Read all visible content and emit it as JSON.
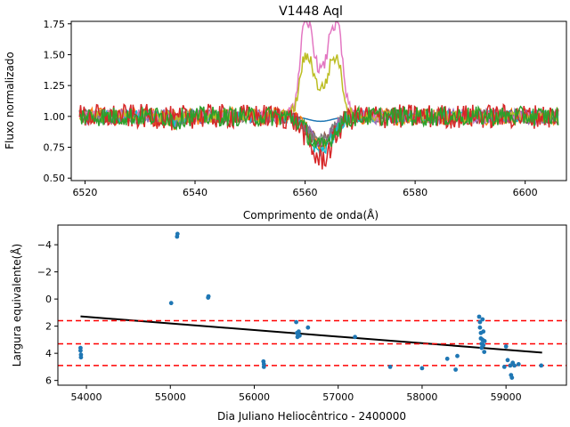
{
  "chart_data": [
    {
      "type": "line",
      "title": "V1448 Aql",
      "xlabel": "Comprimento de onda(Å)",
      "ylabel": "Fluxo normalizado",
      "xlim": [
        6517.5,
        6607.5
      ],
      "ylim": [
        0.48,
        1.77
      ],
      "xticks": [
        6520,
        6540,
        6560,
        6580,
        6600
      ],
      "xtick_labels": [
        "6520",
        "6540",
        "6560",
        "6580",
        "6600"
      ],
      "yticks": [
        0.5,
        0.75,
        1.0,
        1.25,
        1.5,
        1.75
      ],
      "ytick_labels": [
        "0.50",
        "0.75",
        "1.00",
        "1.25",
        "1.50",
        "1.75"
      ],
      "grid": false,
      "x_range": [
        6519,
        6606
      ],
      "series": [
        {
          "color": "#1f77b4",
          "profile": "absorption",
          "depth": 0.04,
          "noise": 0.0,
          "offset": 0.0
        },
        {
          "color": "#ff7f0e",
          "profile": "absorption",
          "depth": 0.22,
          "noise": 0.07,
          "offset": 0.0
        },
        {
          "color": "#8c564b",
          "profile": "absorption",
          "depth": 0.2,
          "noise": 0.06,
          "offset": 0.0
        },
        {
          "color": "#9467bd",
          "profile": "absorption",
          "depth": 0.2,
          "noise": 0.06,
          "offset": 0.0
        },
        {
          "color": "#7f7f7f",
          "profile": "absorption",
          "depth": 0.18,
          "noise": 0.05,
          "offset": 0.0
        },
        {
          "color": "#17becf",
          "profile": "absorption",
          "depth": 0.28,
          "noise": 0.05,
          "offset": 0.0
        },
        {
          "color": "#e377c2",
          "profile": "emission",
          "peaks": [
            1.69,
            1.71
          ],
          "noise": 0.05,
          "offset": 0.0
        },
        {
          "color": "#bcbd22",
          "profile": "emission",
          "peaks": [
            1.45,
            1.42
          ],
          "noise": 0.05,
          "offset": 0.0
        },
        {
          "color": "#d62728",
          "profile": "absorption",
          "depth": 0.35,
          "noise": 0.1,
          "offset": 0.0
        },
        {
          "color": "#2ca02c",
          "profile": "absorption",
          "depth": 0.25,
          "noise": 0.08,
          "offset": 0.0
        }
      ]
    },
    {
      "type": "scatter",
      "title": "",
      "xlabel": "Dia Juliano Heliocêntrico - 2400000",
      "ylabel": "Largura equivalente(Å)",
      "xlim": [
        53660,
        59720
      ],
      "ylim": [
        6.35,
        -5.45
      ],
      "y_inverted": true,
      "xticks": [
        54000,
        55000,
        56000,
        57000,
        58000,
        59000
      ],
      "xtick_labels": [
        "54000",
        "55000",
        "56000",
        "57000",
        "58000",
        "59000"
      ],
      "yticks": [
        -4,
        -2,
        0,
        2,
        4,
        6
      ],
      "ytick_labels": [
        "−4",
        "−2",
        "0",
        "2",
        "4",
        "6"
      ],
      "grid": false,
      "point_color": "#1f77b4",
      "points": [
        [
          53930,
          3.6
        ],
        [
          53930,
          3.8
        ],
        [
          53935,
          4.1
        ],
        [
          53935,
          4.3
        ],
        [
          55010,
          0.3
        ],
        [
          55080,
          -4.6
        ],
        [
          55085,
          -4.8
        ],
        [
          55450,
          -0.1
        ],
        [
          55455,
          -0.2
        ],
        [
          56110,
          4.6
        ],
        [
          56115,
          4.8
        ],
        [
          56115,
          5.0
        ],
        [
          56500,
          1.7
        ],
        [
          56510,
          2.5
        ],
        [
          56515,
          2.8
        ],
        [
          56520,
          2.6
        ],
        [
          56530,
          2.4
        ],
        [
          56540,
          2.7
        ],
        [
          56640,
          2.1
        ],
        [
          57200,
          2.8
        ],
        [
          57620,
          5.0
        ],
        [
          58000,
          5.1
        ],
        [
          58300,
          4.4
        ],
        [
          58400,
          5.2
        ],
        [
          58420,
          4.2
        ],
        [
          58680,
          1.3
        ],
        [
          58690,
          1.7
        ],
        [
          58690,
          2.1
        ],
        [
          58700,
          2.5
        ],
        [
          58700,
          2.9
        ],
        [
          58710,
          3.3
        ],
        [
          58710,
          3.6
        ],
        [
          58720,
          1.5
        ],
        [
          58720,
          3.0
        ],
        [
          58730,
          2.4
        ],
        [
          58730,
          3.4
        ],
        [
          58740,
          3.9
        ],
        [
          58745,
          3.1
        ],
        [
          58980,
          5.0
        ],
        [
          59000,
          3.5
        ],
        [
          59020,
          4.5
        ],
        [
          59050,
          4.9
        ],
        [
          59060,
          5.6
        ],
        [
          59070,
          5.8
        ],
        [
          59080,
          4.7
        ],
        [
          59100,
          4.9
        ],
        [
          59150,
          4.8
        ],
        [
          59420,
          4.9
        ]
      ],
      "trend_line": {
        "x": [
          53930,
          59430
        ],
        "y": [
          1.28,
          3.95
        ],
        "color": "#000000"
      },
      "hlines": [
        {
          "y": 1.6,
          "color": "#ff0000",
          "style": "dashed"
        },
        {
          "y": 3.3,
          "color": "#ff0000",
          "style": "dashed"
        },
        {
          "y": 4.9,
          "color": "#ff0000",
          "style": "dashed"
        }
      ]
    }
  ]
}
